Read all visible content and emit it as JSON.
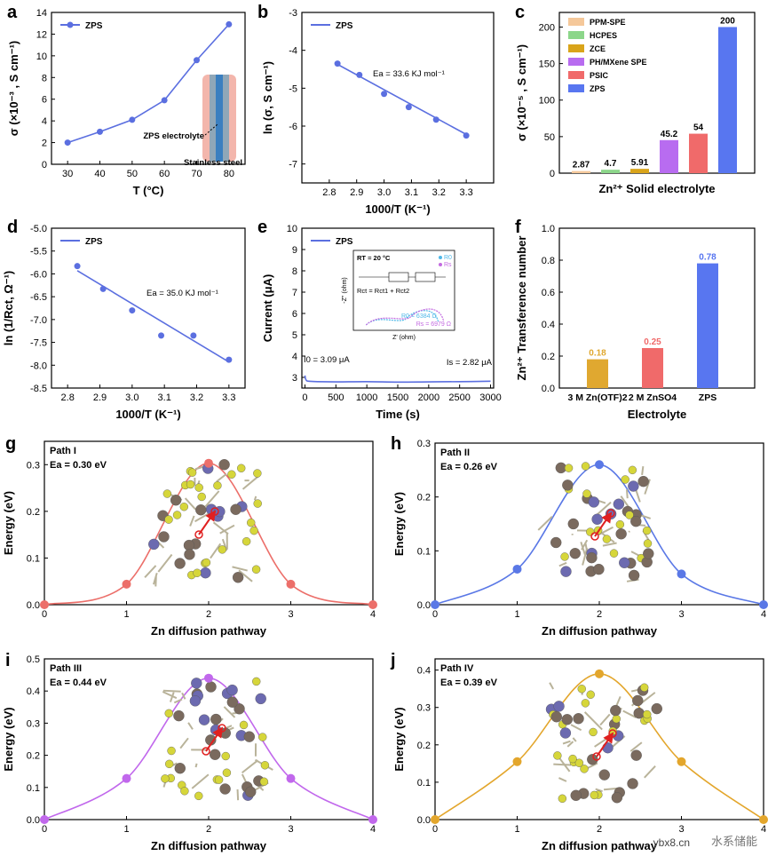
{
  "chart_data": [
    {
      "id": "a",
      "panel": "a",
      "type": "line",
      "legend": "ZPS",
      "color": "#5b6fe0",
      "x": [
        30,
        40,
        50,
        60,
        70,
        80
      ],
      "y": [
        2.0,
        3.0,
        4.1,
        5.9,
        9.6,
        12.9
      ],
      "xlim": [
        25,
        85
      ],
      "ylim": [
        0,
        14
      ],
      "xticks": [
        "30",
        "40",
        "50",
        "60",
        "70",
        "80"
      ],
      "yticks": [
        "0",
        "2",
        "4",
        "6",
        "8",
        "10",
        "12",
        "14"
      ],
      "xlabel": "T (°C)",
      "ylabel": "σ (×10⁻³ , S cm⁻¹)",
      "annotations": [
        "ZPS electrolyte",
        "Stainless steel"
      ]
    },
    {
      "id": "b",
      "panel": "b",
      "type": "scatter",
      "legend": "ZPS",
      "color": "#5b6fe0",
      "x": [
        2.83,
        2.91,
        3.0,
        3.09,
        3.19,
        3.3
      ],
      "y": [
        -4.35,
        -4.65,
        -5.15,
        -5.5,
        -5.83,
        -6.25
      ],
      "fit": [
        [
          2.83,
          -4.37
        ],
        [
          3.3,
          -6.22
        ]
      ],
      "xlim": [
        2.7,
        3.4
      ],
      "ylim": [
        -7.5,
        -3.0
      ],
      "xticks": [
        "2.8",
        "2.9",
        "3.0",
        "3.1",
        "3.2",
        "3.3"
      ],
      "yticks": [
        "-3",
        "-4",
        "-5",
        "-6",
        "-7"
      ],
      "xlabel": "1000/T (K⁻¹)",
      "ylabel": "ln (σ, S cm⁻¹)",
      "annotation": "Ea = 33.6 KJ mol⁻¹"
    },
    {
      "id": "c",
      "panel": "c",
      "type": "bar",
      "categories": [
        "PPM-SPE",
        "HCPES",
        "ZCE",
        "PH/MXene SPE",
        "PSIC",
        "ZPS"
      ],
      "values": [
        2.87,
        4.7,
        5.91,
        45.2,
        54,
        200
      ],
      "labels": [
        "2.87",
        "4.7",
        "5.91",
        "45.2",
        "54",
        "200"
      ],
      "colors": [
        "#f5c89a",
        "#8cd68a",
        "#d9a41a",
        "#b86cf0",
        "#f06a6a",
        "#5876f0"
      ],
      "ylim": [
        0,
        220
      ],
      "yticks": [
        "0",
        "50",
        "100",
        "150",
        "200"
      ],
      "xlabel": "Zn²⁺ Solid electrolyte",
      "ylabel": "σ (×10⁻⁵ , S cm⁻¹)"
    },
    {
      "id": "d",
      "panel": "d",
      "type": "scatter",
      "legend": "ZPS",
      "color": "#5b6fe0",
      "x": [
        2.83,
        2.91,
        3.0,
        3.09,
        3.19,
        3.3
      ],
      "y": [
        -5.83,
        -6.33,
        -6.8,
        -7.35,
        -7.35,
        -7.88
      ],
      "fit": [
        [
          2.83,
          -5.93
        ],
        [
          3.3,
          -7.93
        ]
      ],
      "xlim": [
        2.75,
        3.35
      ],
      "ylim": [
        -8.5,
        -5.0
      ],
      "xticks": [
        "2.8",
        "2.9",
        "3.0",
        "3.1",
        "3.2",
        "3.3"
      ],
      "yticks": [
        "-5.0",
        "-5.5",
        "-6.0",
        "-6.5",
        "-7.0",
        "-7.5",
        "-8.0",
        "-8.5"
      ],
      "xlabel": "1000/T (K⁻¹)",
      "ylabel": "ln (1/Rct, Ω⁻¹)",
      "annotation": "Ea = 35.0 KJ mol⁻¹"
    },
    {
      "id": "e",
      "panel": "e",
      "type": "line",
      "legend": "ZPS",
      "color": "#5b6fe0",
      "x": [
        0,
        8,
        25,
        60,
        200,
        500,
        1000,
        1500,
        2000,
        2500,
        3000
      ],
      "y": [
        3.09,
        2.95,
        2.85,
        2.82,
        2.8,
        2.79,
        2.8,
        2.78,
        2.79,
        2.8,
        2.82
      ],
      "xlim": [
        -50,
        3050
      ],
      "ylim": [
        2.5,
        10
      ],
      "xticks": [
        "0",
        "500",
        "1000",
        "1500",
        "2000",
        "2500",
        "3000"
      ],
      "yticks": [
        "3",
        "4",
        "5",
        "6",
        "7",
        "8",
        "9",
        "10"
      ],
      "xlabel": "Time (s)",
      "ylabel": "Current (μA)",
      "annotations": [
        "I0 = 3.09 μA",
        "Is = 2.82 μA"
      ],
      "inset": {
        "temperature": "RT = 20 °C",
        "equation": "Rct = Rct1 + Rct2",
        "series": [
          {
            "name": "R0",
            "color": "#4fb8e8",
            "value": "R0 = 6384 Ω"
          },
          {
            "name": "Rs",
            "color": "#c36ae0",
            "value": "Rs = 6979 Ω"
          }
        ],
        "xlabel": "Z' (ohm)",
        "ylabel": "-Z'' (ohm)",
        "xticks": [
          "0",
          "1000",
          "2000",
          "3000",
          "4000",
          "5000",
          "6000",
          "7000"
        ],
        "yticks": [
          "0",
          "1000",
          "2000",
          "3000",
          "4000"
        ]
      }
    },
    {
      "id": "f",
      "panel": "f",
      "type": "bar",
      "categories": [
        "3 M Zn(OTF)2",
        "2 M ZnSO4",
        "ZPS"
      ],
      "values": [
        0.18,
        0.25,
        0.78
      ],
      "labels": [
        "0.18",
        "0.25",
        "0.78"
      ],
      "colors": [
        "#e0a830",
        "#f06a6a",
        "#5876f0"
      ],
      "ylim": [
        0,
        1.0
      ],
      "yticks": [
        "0.0",
        "0.2",
        "0.4",
        "0.6",
        "0.8",
        "1.0"
      ],
      "xlabel": "Electrolyte",
      "ylabel": "Zn²⁺ Transference number"
    },
    {
      "id": "g",
      "panel": "g",
      "type": "line",
      "color": "#ec6f6a",
      "x": [
        0,
        1,
        2,
        3,
        4
      ],
      "y": [
        0,
        0.044,
        0.303,
        0.044,
        0
      ],
      "xlim": [
        0,
        4
      ],
      "ylim": [
        0,
        0.35
      ],
      "xticks": [
        "0",
        "1",
        "2",
        "3",
        "4"
      ],
      "yticks": [
        "0.0",
        "0.1",
        "0.2",
        "0.3"
      ],
      "xlabel": "Zn diffusion pathway",
      "ylabel": "Energy (eV)",
      "path": "Path I",
      "barrier": "Ea = 0.30 eV"
    },
    {
      "id": "h",
      "panel": "h",
      "type": "line",
      "color": "#5a78e6",
      "x": [
        0,
        1,
        2,
        3,
        4
      ],
      "y": [
        0,
        0.066,
        0.26,
        0.057,
        0
      ],
      "xlim": [
        0,
        4
      ],
      "ylim": [
        0,
        0.3
      ],
      "xticks": [
        "0",
        "1",
        "2",
        "3",
        "4"
      ],
      "yticks": [
        "0.0",
        "0.1",
        "0.2",
        "0.3"
      ],
      "xlabel": "Zn diffusion pathway",
      "ylabel": "Energy (eV)",
      "path": "Path II",
      "barrier": "Ea = 0.26 eV"
    },
    {
      "id": "i",
      "panel": "i",
      "type": "line",
      "color": "#c168ec",
      "x": [
        0,
        1,
        2,
        3,
        4
      ],
      "y": [
        0,
        0.128,
        0.44,
        0.128,
        0
      ],
      "xlim": [
        0,
        4
      ],
      "ylim": [
        0,
        0.5
      ],
      "xticks": [
        "0",
        "1",
        "2",
        "3",
        "4"
      ],
      "yticks": [
        "0.0",
        "0.1",
        "0.2",
        "0.3",
        "0.4",
        "0.5"
      ],
      "xlabel": "Zn diffusion pathway",
      "ylabel": "Energy (eV)",
      "path": "Path III",
      "barrier": "Ea = 0.44 eV"
    },
    {
      "id": "j",
      "panel": "j",
      "type": "line",
      "color": "#e3a62c",
      "x": [
        0,
        1,
        2,
        3,
        4
      ],
      "y": [
        0,
        0.155,
        0.39,
        0.155,
        0
      ],
      "xlim": [
        0,
        4
      ],
      "ylim": [
        0,
        0.43
      ],
      "xticks": [
        "0",
        "1",
        "2",
        "3",
        "4"
      ],
      "yticks": [
        "0.0",
        "0.1",
        "0.2",
        "0.3",
        "0.4"
      ],
      "xlabel": "Zn diffusion pathway",
      "ylabel": "Energy (eV)",
      "path": "Path IV",
      "barrier": "Ea = 0.39 eV"
    }
  ],
  "watermark": {
    "text": "水系储能",
    "site": "ybx8.cn"
  }
}
